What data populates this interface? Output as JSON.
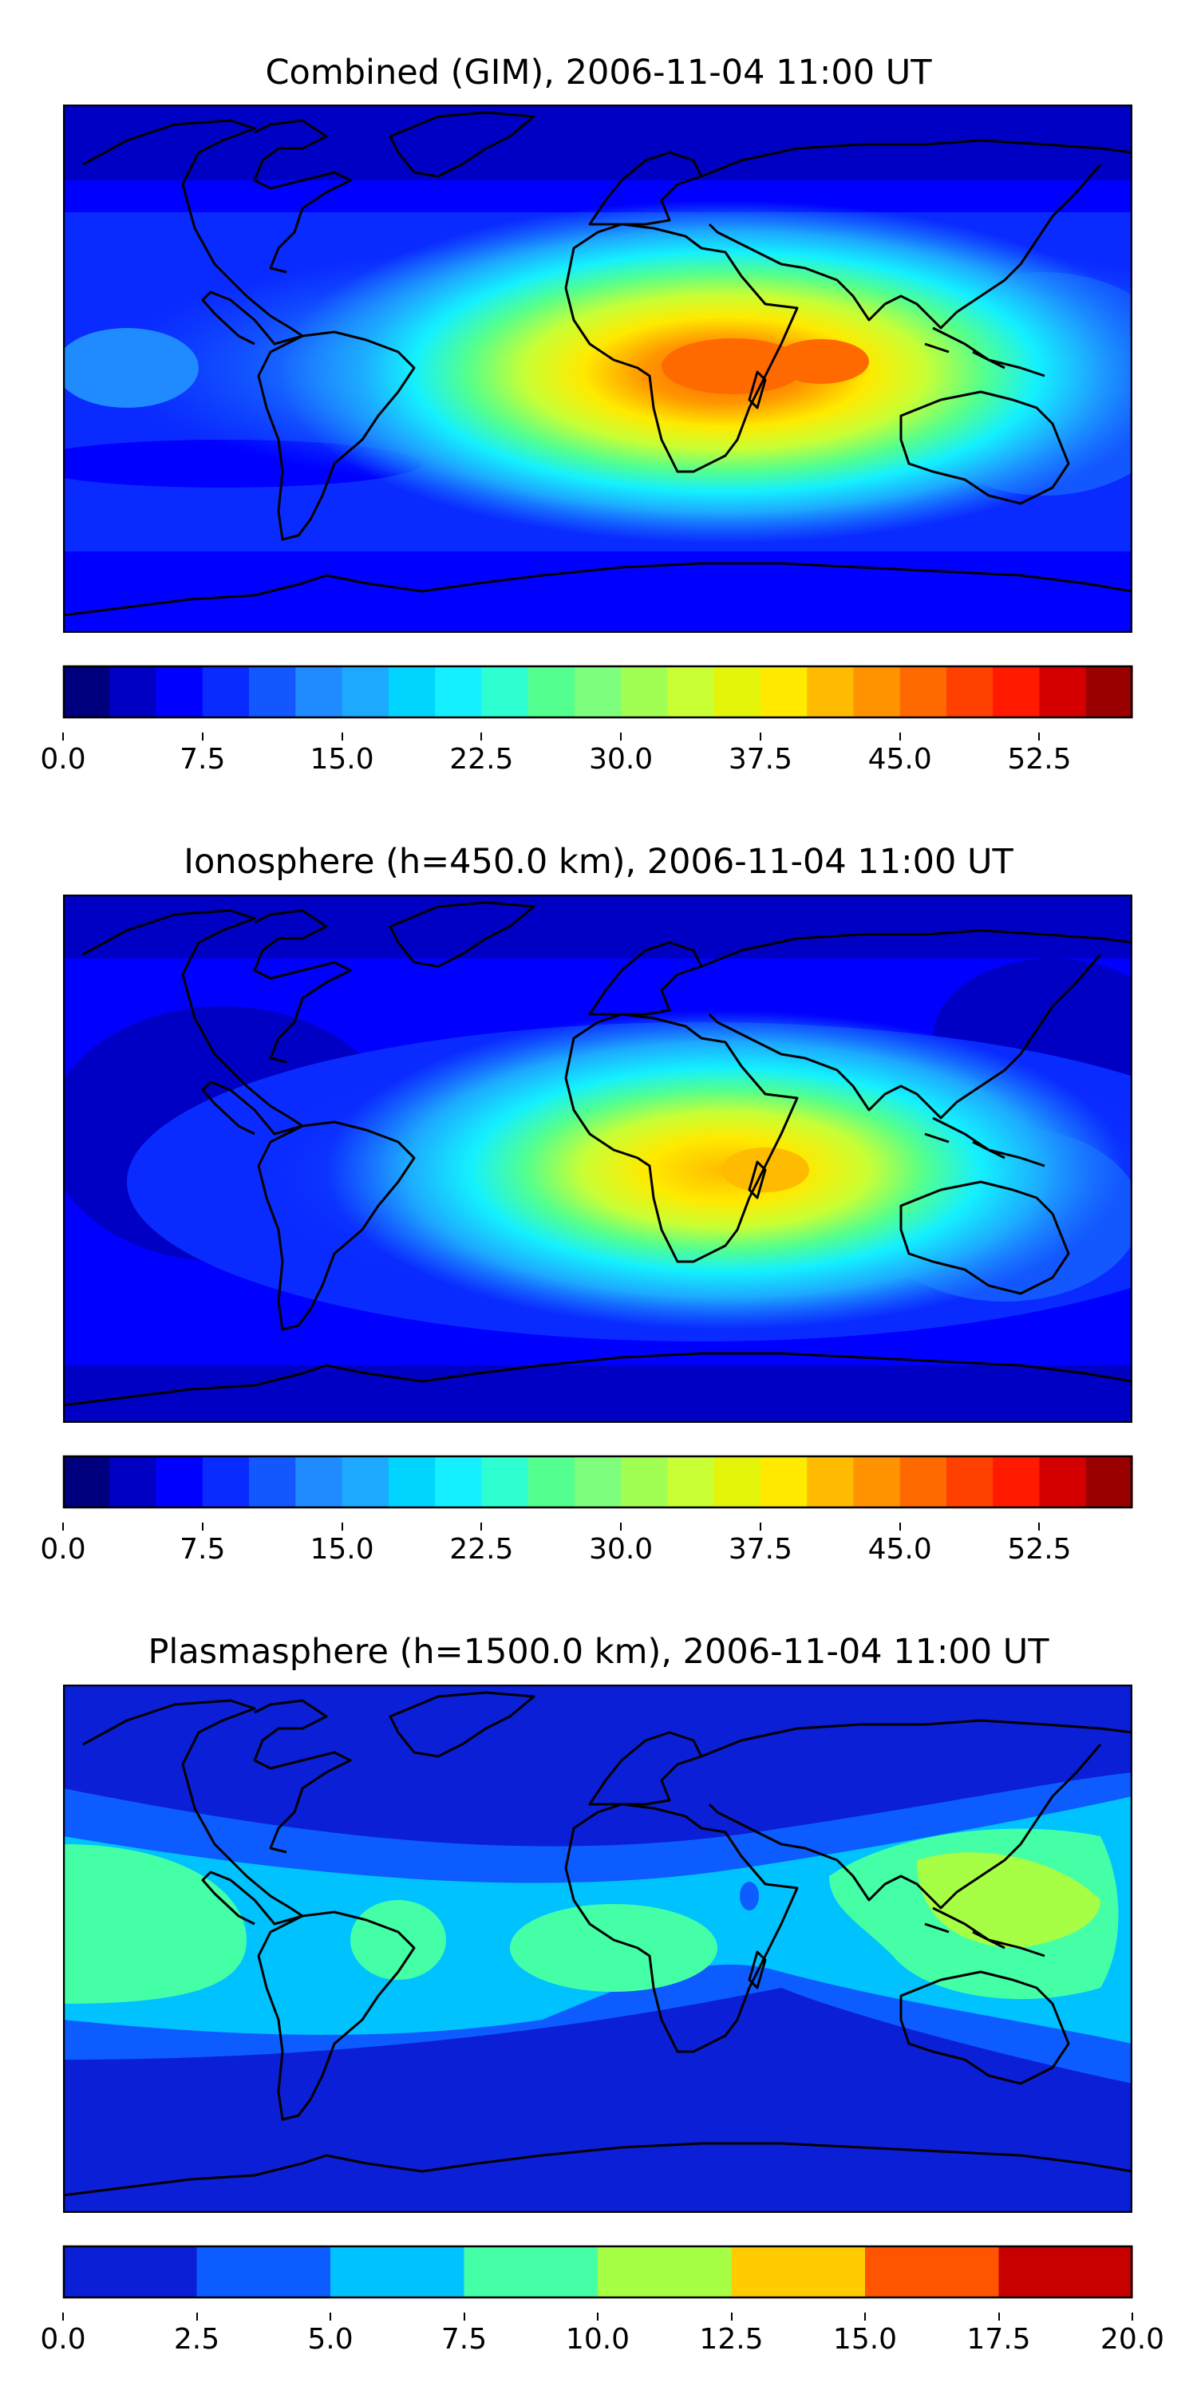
{
  "panels": [
    {
      "title": "Combined (GIM), 2006-11-04 11:00 UT",
      "colorbar": {
        "colors": [
          "#00007f",
          "#0000c4",
          "#0000ff",
          "#0a2bff",
          "#1357ff",
          "#1f8bff",
          "#1da9ff",
          "#00d4ff",
          "#14f0ff",
          "#2dffd2",
          "#53ff8e",
          "#7dff7d",
          "#a1ff53",
          "#c8ff35",
          "#e5f50a",
          "#ffea00",
          "#ffbb00",
          "#ff9400",
          "#ff6a00",
          "#ff4000",
          "#ff1a00",
          "#d40000",
          "#9a0000"
        ],
        "ticks": [
          "0.0",
          "7.5",
          "15.0",
          "22.5",
          "30.0",
          "37.5",
          "45.0",
          "52.5"
        ]
      }
    },
    {
      "title": "Ionosphere  (h=450.0 km), 2006-11-04 11:00 UT",
      "colorbar": {
        "colors": [
          "#00007f",
          "#0000c4",
          "#0000ff",
          "#0a2bff",
          "#1357ff",
          "#1f8bff",
          "#1da9ff",
          "#00d4ff",
          "#14f0ff",
          "#2dffd2",
          "#53ff8e",
          "#7dff7d",
          "#a1ff53",
          "#c8ff35",
          "#e5f50a",
          "#ffea00",
          "#ffbb00",
          "#ff9400",
          "#ff6a00",
          "#ff4000",
          "#ff1a00",
          "#d40000",
          "#9a0000"
        ],
        "ticks": [
          "0.0",
          "7.5",
          "15.0",
          "22.5",
          "30.0",
          "37.5",
          "45.0",
          "52.5"
        ]
      }
    },
    {
      "title": "Plasmasphere (h=1500.0 km), 2006-11-04 11:00 UT",
      "colorbar": {
        "colors": [
          "#0a1fd6",
          "#0c5cff",
          "#00c2ff",
          "#45ffa6",
          "#a6ff45",
          "#ffcc00",
          "#ff5500",
          "#c80000"
        ],
        "ticks": [
          "0.0",
          "2.5",
          "5.0",
          "7.5",
          "10.0",
          "12.5",
          "15.0",
          "17.5",
          "20.0"
        ]
      }
    }
  ]
}
